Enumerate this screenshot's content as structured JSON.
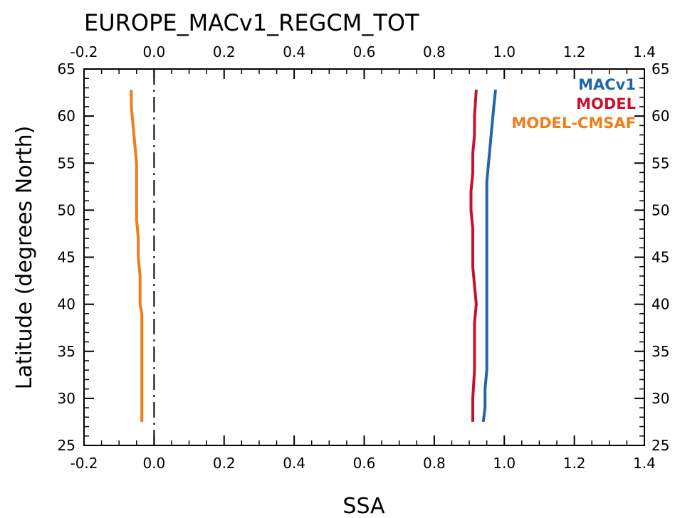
{
  "chart_data": {
    "type": "line",
    "title": "EUROPE_MACv1_REGCM_TOT",
    "xlabel": "SSA",
    "ylabel": "Latitude (degrees North)",
    "xlim": [
      -0.2,
      1.4
    ],
    "ylim": [
      25,
      65
    ],
    "x_ticks": [
      "-0.2",
      "0.0",
      "0.2",
      "0.4",
      "0.6",
      "0.8",
      "1.0",
      "1.2",
      "1.4"
    ],
    "y_ticks": [
      "25",
      "30",
      "35",
      "40",
      "45",
      "50",
      "55",
      "60",
      "65"
    ],
    "reference_line_x": 0.0,
    "legend_position": "top-right",
    "series": [
      {
        "name": "MACv1",
        "color": "#2166ac",
        "y": [
          27.5,
          29,
          31,
          33,
          35,
          37,
          39,
          41,
          43,
          45,
          47,
          49,
          51,
          53,
          55,
          57,
          59,
          61,
          62.8
        ],
        "x": [
          0.94,
          0.945,
          0.945,
          0.95,
          0.95,
          0.95,
          0.95,
          0.95,
          0.95,
          0.95,
          0.95,
          0.95,
          0.95,
          0.95,
          0.955,
          0.96,
          0.965,
          0.97,
          0.975
        ]
      },
      {
        "name": "MODEL",
        "color": "#c8102e",
        "y": [
          27.5,
          30,
          33,
          36,
          38,
          40,
          42,
          44,
          46,
          48,
          50,
          52,
          54,
          56,
          58,
          60,
          62.8
        ],
        "x": [
          0.91,
          0.91,
          0.915,
          0.915,
          0.915,
          0.92,
          0.915,
          0.91,
          0.91,
          0.91,
          0.905,
          0.905,
          0.91,
          0.91,
          0.915,
          0.915,
          0.92
        ]
      },
      {
        "name": "MODEL-CMSAF",
        "color": "#f07d1a",
        "y": [
          27.5,
          31,
          35,
          39,
          40,
          43,
          45,
          47,
          49,
          51,
          53,
          55,
          57,
          59,
          61,
          62.8
        ],
        "x": [
          -0.035,
          -0.035,
          -0.035,
          -0.035,
          -0.04,
          -0.04,
          -0.045,
          -0.045,
          -0.05,
          -0.05,
          -0.05,
          -0.05,
          -0.055,
          -0.06,
          -0.065,
          -0.065
        ]
      }
    ]
  }
}
